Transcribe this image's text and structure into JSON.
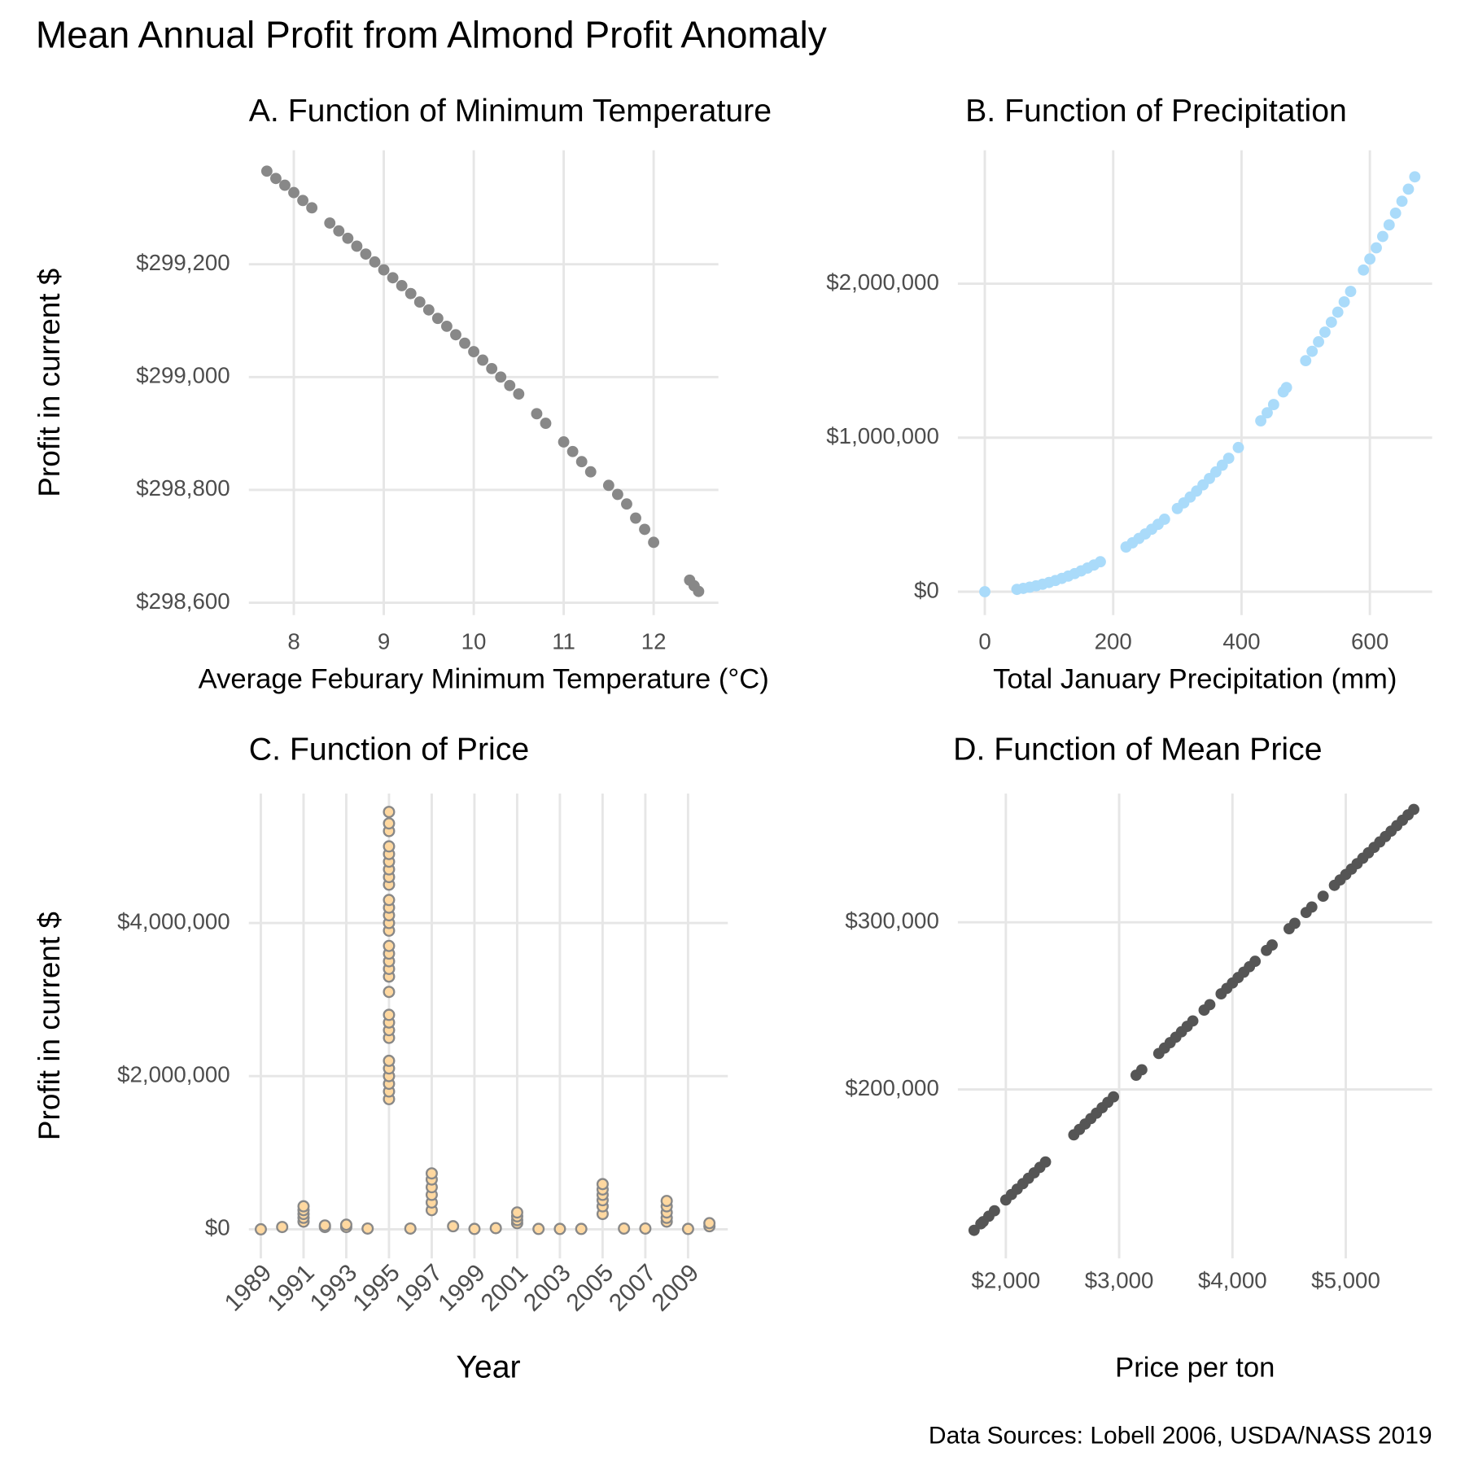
{
  "title": "Mean Annual Profit from Almond Profit Anomaly",
  "caption": "Data Sources: Lobell 2006, USDA/NASS 2019",
  "chart_data": [
    {
      "type": "scatter",
      "title": "A. Function of Minimum Temperature",
      "x_label": "Average Feburary Minimum Temperature (°C)",
      "y_label": "Profit in current $",
      "color": "#888888",
      "grid": true,
      "xlim": [
        7.5,
        12.72
      ],
      "xticks": [
        8,
        9,
        10,
        11,
        12
      ],
      "ylim": [
        298578,
        299402
      ],
      "yticks": [
        {
          "value": 298600,
          "label": "$298,600"
        },
        {
          "value": 298800,
          "label": "$298,800"
        },
        {
          "value": 299000,
          "label": "$299,000"
        },
        {
          "value": 299200,
          "label": "$299,200"
        }
      ],
      "x": [
        7.7,
        7.8,
        7.9,
        8.0,
        8.1,
        8.2,
        8.4,
        8.5,
        8.6,
        8.7,
        8.8,
        8.9,
        9.0,
        9.1,
        9.2,
        9.3,
        9.4,
        9.5,
        9.6,
        9.7,
        9.8,
        9.9,
        10.0,
        10.1,
        10.2,
        10.3,
        10.4,
        10.5,
        10.7,
        10.8,
        11.0,
        11.1,
        11.2,
        11.3,
        11.5,
        11.6,
        11.7,
        11.8,
        11.9,
        12.0,
        12.4,
        12.45,
        12.5
      ],
      "values": [
        299365,
        299352,
        299340,
        299327,
        299313,
        299300,
        299273,
        299259,
        299246,
        299232,
        299218,
        299204,
        299190,
        299176,
        299162,
        299148,
        299133,
        299119,
        299104,
        299090,
        299075,
        299060,
        299045,
        299030,
        299015,
        299000,
        298985,
        298970,
        298935,
        298918,
        298885,
        298868,
        298850,
        298832,
        298808,
        298792,
        298775,
        298750,
        298730,
        298707,
        298640,
        298630,
        298620
      ]
    },
    {
      "type": "scatter",
      "title": "B. Function of Precipitation",
      "x_label": "Total January Precipitation (mm)",
      "color": "#aadbfa",
      "grid": true,
      "xlim": [
        -42,
        697
      ],
      "xticks": [
        0,
        200,
        400,
        600
      ],
      "ylim": [
        -152000,
        2866000
      ],
      "yticks": [
        {
          "value": 0,
          "label": "$0"
        },
        {
          "value": 1000000,
          "label": "$1,000,000"
        },
        {
          "value": 2000000,
          "label": "$2,000,000"
        }
      ],
      "x": [
        0,
        50,
        60,
        70,
        80,
        90,
        100,
        110,
        120,
        130,
        140,
        150,
        160,
        170,
        180,
        220,
        230,
        240,
        250,
        260,
        270,
        280,
        300,
        310,
        320,
        330,
        340,
        350,
        360,
        370,
        380,
        395,
        430,
        440,
        450,
        465,
        470,
        500,
        510,
        520,
        530,
        540,
        550,
        560,
        570,
        590,
        600,
        610,
        620,
        630,
        640,
        650,
        660,
        670
      ],
      "values": [
        0,
        15000,
        21600,
        29400,
        38400,
        48600,
        60000,
        72600,
        86400,
        101400,
        117600,
        135000,
        153600,
        173400,
        194400,
        290400,
        317400,
        345600,
        375000,
        405600,
        437400,
        470400,
        540000,
        576600,
        614400,
        653400,
        693600,
        735000,
        777600,
        821400,
        866400,
        936150,
        1109400,
        1161600,
        1215000,
        1297350,
        1325400,
        1500000,
        1560600,
        1622400,
        1685400,
        1749600,
        1815000,
        1881600,
        1949400,
        2088600,
        2160000,
        2232600,
        2306400,
        2381400,
        2457600,
        2535000,
        2613600,
        2693400
      ]
    },
    {
      "type": "scatter",
      "title": "C. Function of Price",
      "x_label": "Year",
      "y_label": "Profit in current $",
      "color": "#ffd8a0",
      "edge_color": "#888888",
      "grid": true,
      "xlim": [
        1988.44,
        2010.86
      ],
      "xticks": [
        1989,
        1991,
        1993,
        1995,
        1997,
        1999,
        2001,
        2003,
        2005,
        2007,
        2009
      ],
      "ylim": [
        -380000,
        5690000
      ],
      "yticks": [
        {
          "value": 0,
          "label": "$0"
        },
        {
          "value": 2000000,
          "label": "$2,000,000"
        },
        {
          "value": 4000000,
          "label": "$4,000,000"
        }
      ],
      "x": [
        1989,
        1990,
        1991,
        1991,
        1991,
        1991,
        1991,
        1992,
        1992,
        1993,
        1993,
        1994,
        1995,
        1995,
        1995,
        1995,
        1995,
        1995,
        1995,
        1995,
        1995,
        1995,
        1995,
        1995,
        1995,
        1995,
        1995,
        1995,
        1995,
        1995,
        1995,
        1995,
        1995,
        1995,
        1995,
        1995,
        1995,
        1995,
        1995,
        1995,
        1995,
        1995,
        1996,
        1997,
        1997,
        1997,
        1997,
        1997,
        1997,
        1998,
        1999,
        2000,
        2001,
        2001,
        2001,
        2001,
        2002,
        2003,
        2004,
        2005,
        2005,
        2005,
        2005,
        2005,
        2005,
        2006,
        2007,
        2008,
        2008,
        2008,
        2008,
        2008,
        2009,
        2010,
        2010
      ],
      "values": [
        0,
        30000,
        100000,
        150000,
        200000,
        250000,
        300000,
        30000,
        50000,
        30000,
        60000,
        10000,
        1700000,
        1800000,
        1900000,
        2000000,
        2100000,
        2200000,
        2500000,
        2600000,
        2700000,
        2800000,
        3100000,
        3300000,
        3400000,
        3500000,
        3600000,
        3700000,
        3900000,
        4000000,
        4100000,
        4200000,
        4300000,
        4500000,
        4600000,
        4700000,
        4800000,
        4900000,
        5000000,
        5200000,
        5300000,
        5450000,
        10000,
        250000,
        350000,
        450000,
        550000,
        650000,
        730000,
        40000,
        5000,
        15000,
        80000,
        120000,
        170000,
        220000,
        5000,
        5000,
        5000,
        200000,
        300000,
        380000,
        450000,
        520000,
        590000,
        10000,
        10000,
        100000,
        150000,
        220000,
        300000,
        370000,
        5000,
        40000,
        80000
      ]
    },
    {
      "type": "scatter",
      "title": "D. Function of Mean Price",
      "x_label": "Price per ton",
      "color": "#555555",
      "grid": true,
      "xlim": [
        1577,
        5762
      ],
      "xticks": [
        {
          "value": 2000,
          "label": "$2,000"
        },
        {
          "value": 3000,
          "label": "$3,000"
        },
        {
          "value": 4000,
          "label": "$4,000"
        },
        {
          "value": 5000,
          "label": "$5,000"
        }
      ],
      "ylim": [
        98900,
        377000
      ],
      "yticks": [
        {
          "value": 200000,
          "label": "$200,000"
        },
        {
          "value": 300000,
          "label": "$300,000"
        }
      ],
      "x": [
        1720,
        1780,
        1800,
        1850,
        1900,
        2000,
        2050,
        2100,
        2150,
        2200,
        2250,
        2300,
        2350,
        2600,
        2650,
        2700,
        2750,
        2800,
        2850,
        2900,
        2950,
        3150,
        3200,
        3350,
        3400,
        3450,
        3500,
        3550,
        3600,
        3650,
        3750,
        3800,
        3900,
        3950,
        4000,
        4050,
        4100,
        4150,
        4200,
        4300,
        4350,
        4500,
        4550,
        4650,
        4700,
        4800,
        4900,
        4950,
        5000,
        5050,
        5100,
        5150,
        5200,
        5250,
        5300,
        5350,
        5400,
        5450,
        5500,
        5550,
        5600
      ],
      "values": [
        115700,
        119594,
        120892,
        124137,
        127382,
        133872,
        137117,
        140362,
        143607,
        146852,
        150097,
        153342,
        156587,
        172812,
        176057,
        179302,
        182547,
        185792,
        189037,
        192282,
        195527,
        208507,
        211752,
        221487,
        224732,
        227977,
        231222,
        234467,
        237712,
        240957,
        247447,
        250692,
        257182,
        260427,
        263672,
        266917,
        270162,
        273407,
        276652,
        283142,
        286387,
        296122,
        299367,
        305857,
        309102,
        315592,
        322082,
        325327,
        328572,
        331817,
        335062,
        338307,
        341552,
        344797,
        348042,
        351287,
        354532,
        357777,
        361022,
        364267,
        367512
      ]
    }
  ]
}
